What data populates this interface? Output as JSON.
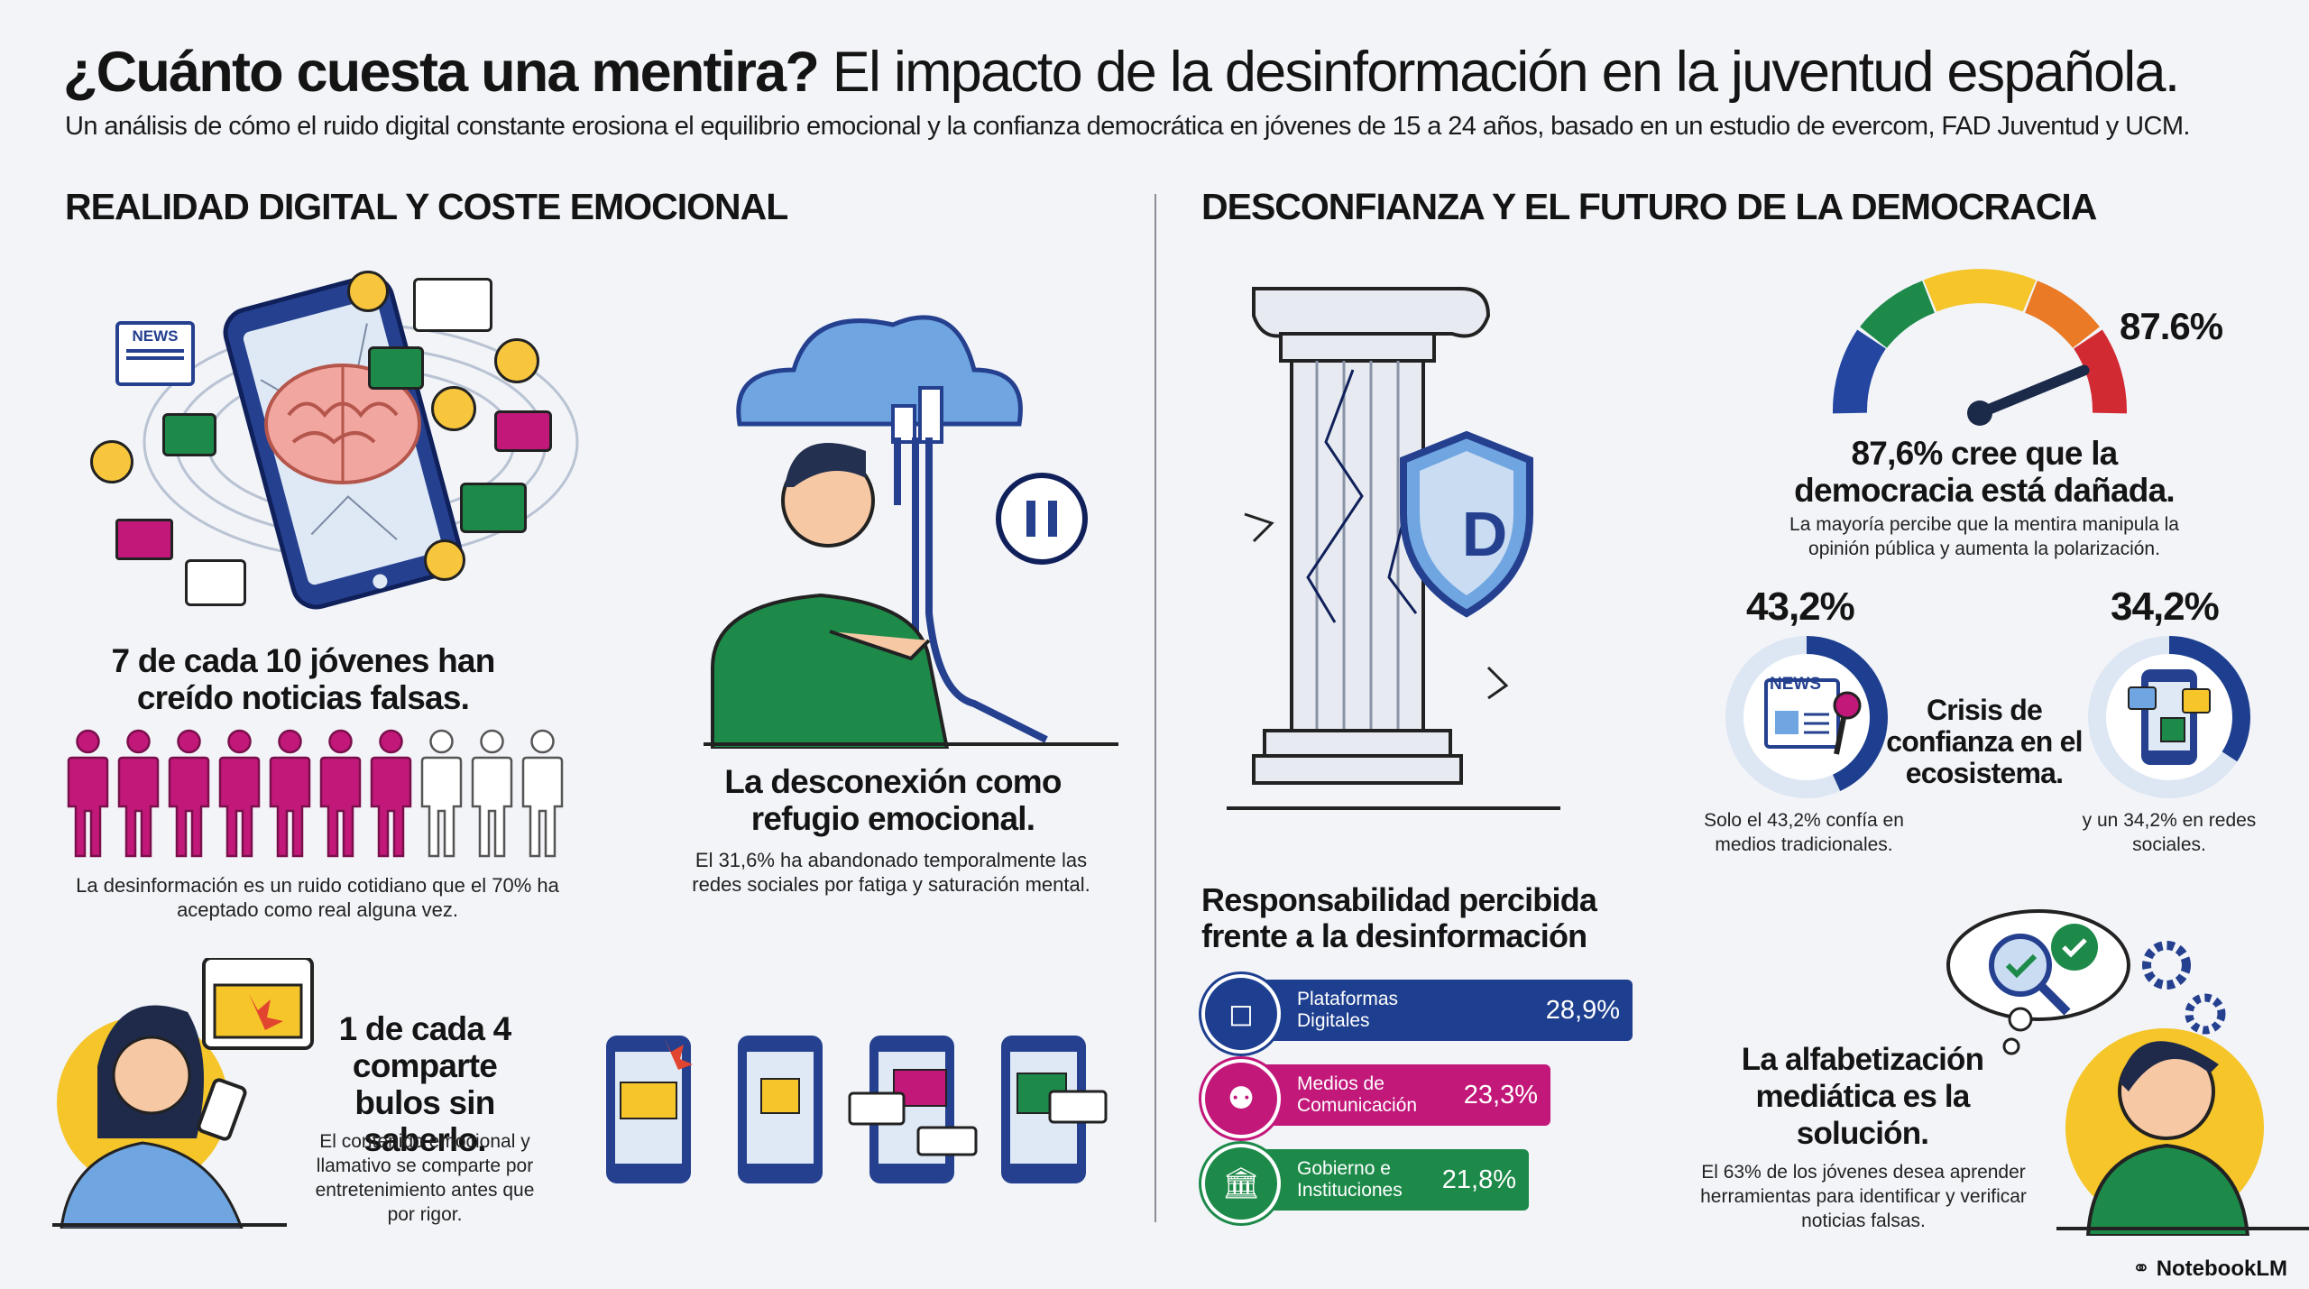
{
  "title": {
    "bold": "¿Cuánto cuesta una mentira?",
    "rest": "El impacto de la desinformación en la juventud española."
  },
  "subtitle": "Un análisis de cómo el ruido digital constante erosiona el equilibrio emocional y la confianza democrática en jóvenes de 15 a 24 años, basado en un estudio de evercom, FAD Juventud y UCM.",
  "left_section": {
    "heading": "REALIDAD DIGITAL Y COSTE EMOCIONAL",
    "believed": {
      "headline": "7 de cada 10 jóvenes han creído noticias falsas.",
      "filled": 7,
      "total": 10,
      "body": "La desinformación es un ruido cotidiano que el 70% ha aceptado como real alguna vez."
    },
    "disconnect": {
      "headline": "La desconexión como refugio emocional.",
      "body": "El 31,6% ha abandonado temporalmente las redes sociales por fatiga y saturación mental."
    },
    "share": {
      "headline": "1 de cada 4 comparte bulos sin saberlo.",
      "body": "El contenido emocional y llamativo se comparte por entretenimiento antes que por rigor."
    },
    "news_badge": "NEWS"
  },
  "right_section": {
    "heading": "DESCONFIANZA Y EL FUTURO DE LA DEMOCRACIA",
    "shield_letter": "D",
    "gauge": {
      "value_label": "87.6%",
      "value": 87.6,
      "headline": "87,6% cree que la democracia está dañada.",
      "body": "La mayoría percibe que la mentira manipula la opinión pública y aumenta la polarización."
    },
    "trust": {
      "center_text": "Crisis de confianza en el ecosistema.",
      "traditional": {
        "pct_label": "43,2%",
        "value": 43.2,
        "body": "Solo el 43,2% confía en medios tradicionales.",
        "badge": "NEWS"
      },
      "social": {
        "pct_label": "34,2%",
        "value": 34.2,
        "body": "y un 34,2% en redes sociales."
      }
    },
    "responsibility": {
      "title": "Responsabilidad percibida frente a la desinformación",
      "bars": [
        {
          "label": "Plataformas Digitales",
          "value_label": "28,9%",
          "value": 28.9,
          "color": "#1e3f8f"
        },
        {
          "label": "Medios de Comunicación",
          "value_label": "23,3%",
          "value": 23.3,
          "color": "#c2187a"
        },
        {
          "label": "Gobierno e Instituciones",
          "value_label": "21,8%",
          "value": 21.8,
          "color": "#1d8a4a"
        }
      ]
    },
    "literacy": {
      "headline": "La alfabetización mediática es la solución.",
      "body": "El 63% de los jóvenes desea aprender herramientas para identificar y verificar noticias falsas."
    }
  },
  "footer": {
    "brand": "NotebookLM"
  },
  "colors": {
    "navy": "#1e3f8f",
    "magenta": "#c2187a",
    "green": "#1d8a4a",
    "yellow": "#f5c52a",
    "sky": "#6fa5e0"
  }
}
